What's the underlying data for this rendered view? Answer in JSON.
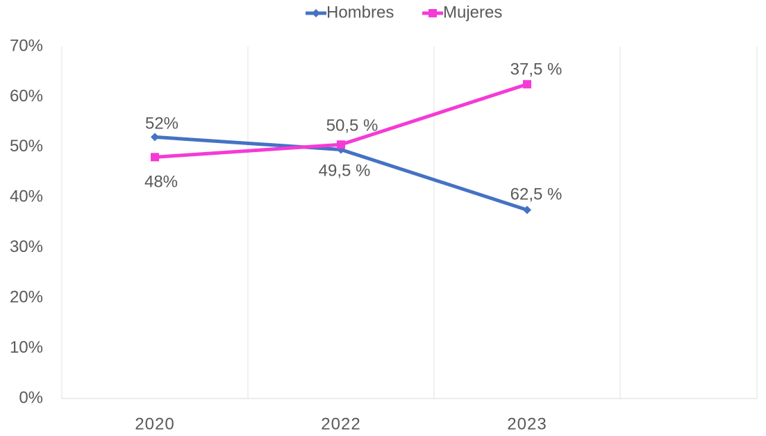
{
  "chart_data": {
    "type": "line",
    "categories": [
      "2020",
      "2022",
      "2023"
    ],
    "series": [
      {
        "name": "Hombres",
        "color": "#4472c4",
        "marker": "diamond",
        "values": [
          52,
          49.5,
          37.5
        ]
      },
      {
        "name": "Mujeres",
        "color": "#f53ad7",
        "marker": "square",
        "values": [
          48,
          50.5,
          62.5
        ]
      }
    ],
    "ylim": [
      0,
      70
    ],
    "yticks": [
      {
        "value": 0,
        "label": "0%"
      },
      {
        "value": 10,
        "label": "10%"
      },
      {
        "value": 20,
        "label": "20%"
      },
      {
        "value": 30,
        "label": "30%"
      },
      {
        "value": 40,
        "label": "40%"
      },
      {
        "value": 50,
        "label": "50%"
      },
      {
        "value": 60,
        "label": "60%"
      },
      {
        "value": 70,
        "label": "70%"
      }
    ],
    "grid": "x",
    "legend": "top",
    "annotations": [
      "52%",
      "48%",
      "50,5 %",
      "49,5 %",
      "37,5 %",
      "62,5 %"
    ]
  }
}
